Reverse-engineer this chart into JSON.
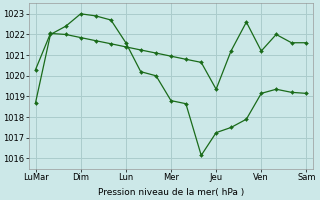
{
  "xlabel": "Pression niveau de la mer( hPa )",
  "ylim": [
    1015.5,
    1023.5
  ],
  "yticks": [
    1016,
    1017,
    1018,
    1019,
    1020,
    1021,
    1022,
    1023
  ],
  "xtick_labels": [
    "LuMar",
    "Dim",
    "Lun",
    "Mer",
    "Jeu",
    "Ven",
    "Sam"
  ],
  "bg_color": "#cce8e8",
  "grid_color": "#aacccc",
  "line_color": "#1a6b1a",
  "line1_x": [
    0.0,
    0.33,
    0.67,
    1.0,
    1.33,
    1.67,
    2.0,
    2.33,
    2.67,
    3.0,
    3.33,
    3.67,
    4.0,
    4.33,
    4.67,
    5.0,
    5.33,
    5.67,
    6.0
  ],
  "line1_y": [
    1018.7,
    1022.0,
    1022.4,
    1023.0,
    1022.9,
    1022.7,
    1021.6,
    1020.2,
    1020.0,
    1018.8,
    1018.65,
    1016.15,
    1017.25,
    1017.5,
    1017.9,
    1019.15,
    1019.35,
    1019.2,
    1019.15
  ],
  "line2_x": [
    0.0,
    0.33,
    0.67,
    1.0,
    1.33,
    1.67,
    2.0,
    2.33,
    2.67,
    3.0,
    3.33,
    3.67,
    4.0,
    4.33,
    4.67,
    5.0,
    5.33,
    5.67,
    6.0
  ],
  "line2_y": [
    1020.3,
    1022.05,
    1022.0,
    1021.85,
    1021.7,
    1021.55,
    1021.4,
    1021.25,
    1021.1,
    1020.95,
    1020.8,
    1020.65,
    1019.35,
    1021.2,
    1022.6,
    1021.2,
    1022.0,
    1021.6,
    1021.6
  ],
  "figsize": [
    3.2,
    2.0
  ],
  "dpi": 100
}
